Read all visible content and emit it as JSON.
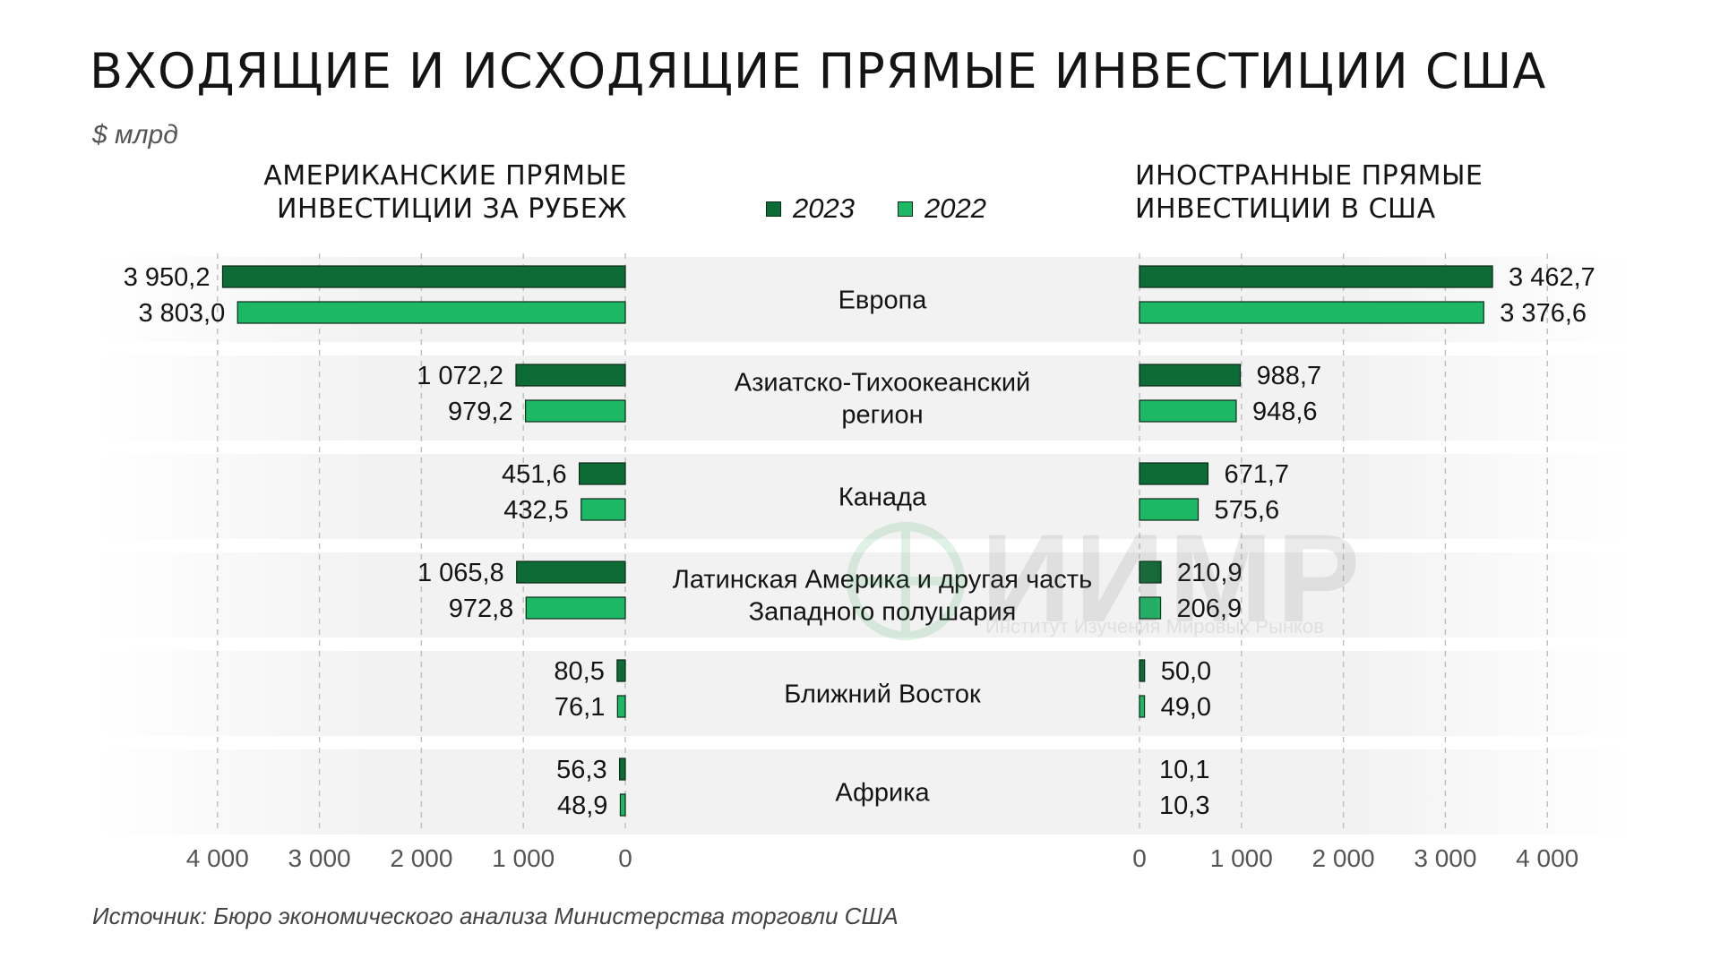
{
  "title": "Входящие и исходящие прямые инвестиции США",
  "unit": "$ млрд",
  "left_title": [
    "Американские прямые",
    "инвестиции за рубеж"
  ],
  "right_title": [
    "Иностранные прямые",
    "инвестиции в США"
  ],
  "legend": [
    {
      "label": "2023",
      "color": "#0d6b35"
    },
    {
      "label": "2022",
      "color": "#1cb865"
    }
  ],
  "source": "Источник: Бюро экономического анализа Министерства торговли США",
  "watermark": {
    "text": "ИИМР",
    "subtitle": "Институт Изучения Мировых Рынков"
  },
  "colors": {
    "dark": "#0d6b35",
    "light": "#1cb865",
    "band": "#f2f2f2",
    "grid": "#bdbdbd"
  },
  "chart_data": {
    "type": "bar",
    "orientation": "horizontal-butterfly",
    "categories": [
      [
        "Европа"
      ],
      [
        "Азиатско-Тихоокеанский",
        "регион"
      ],
      [
        "Канада"
      ],
      [
        "Латинская Америка и другая часть",
        "Западного полушария"
      ],
      [
        "Ближний Восток"
      ],
      [
        "Африка"
      ]
    ],
    "left": {
      "series": [
        {
          "name": "2023",
          "values": [
            3950.2,
            1072.2,
            451.6,
            1065.8,
            80.5,
            56.3
          ],
          "labels": [
            "3 950,2",
            "1 072,2",
            "451,6",
            "1 065,8",
            "80,5",
            "56,3"
          ]
        },
        {
          "name": "2022",
          "values": [
            3803.0,
            979.2,
            432.5,
            972.8,
            76.1,
            48.9
          ],
          "labels": [
            "3 803,0",
            "979,2",
            "432,5",
            "972,8",
            "76,1",
            "48,9"
          ]
        }
      ],
      "ticks": [
        4000,
        3000,
        2000,
        1000,
        0
      ],
      "tick_labels": [
        "4 000",
        "3 000",
        "2 000",
        "1 000",
        "0"
      ],
      "xlim": [
        0,
        4000
      ]
    },
    "right": {
      "series": [
        {
          "name": "2023",
          "values": [
            3462.7,
            988.7,
            671.7,
            210.9,
            50.0,
            10.1
          ],
          "labels": [
            "3 462,7",
            "988,7",
            "671,7",
            "210,9",
            "50,0",
            "10,1"
          ]
        },
        {
          "name": "2022",
          "values": [
            3376.6,
            948.6,
            575.6,
            206.9,
            49.0,
            10.3
          ],
          "labels": [
            "3 376,6",
            "948,6",
            "575,6",
            "206,9",
            "49,0",
            "10,3"
          ]
        }
      ],
      "ticks": [
        0,
        1000,
        2000,
        3000,
        4000
      ],
      "tick_labels": [
        "0",
        "1 000",
        "2 000",
        "3 000",
        "4 000"
      ],
      "xlim": [
        0,
        4000
      ]
    }
  }
}
